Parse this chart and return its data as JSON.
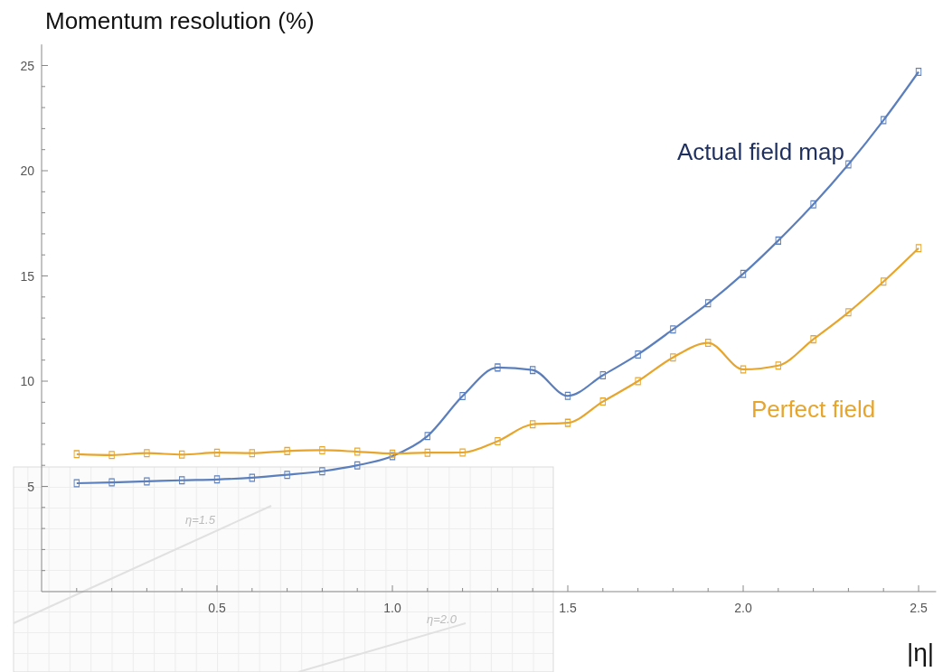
{
  "chart_data": {
    "type": "line",
    "ylabel": "Momentum resolution (%)",
    "xlabel": "|η|",
    "x": [
      0.1,
      0.2,
      0.3,
      0.4,
      0.5,
      0.6,
      0.7,
      0.8,
      0.9,
      1.0,
      1.1,
      1.2,
      1.3,
      1.4,
      1.5,
      1.6,
      1.7,
      1.8,
      1.9,
      2.0,
      2.1,
      2.2,
      2.3,
      2.4,
      2.5
    ],
    "series": [
      {
        "name": "Actual field map",
        "color": "#5b7fbd",
        "values": [
          5.15,
          5.19,
          5.24,
          5.29,
          5.33,
          5.41,
          5.55,
          5.72,
          6.0,
          6.44,
          7.39,
          9.29,
          10.65,
          10.53,
          9.3,
          10.28,
          11.27,
          12.46,
          13.7,
          15.1,
          16.68,
          18.4,
          20.3,
          22.4,
          24.7
        ]
      },
      {
        "name": "Perfect field",
        "color": "#e6a52c",
        "values": [
          6.53,
          6.49,
          6.58,
          6.51,
          6.6,
          6.58,
          6.68,
          6.72,
          6.65,
          6.56,
          6.6,
          6.61,
          7.15,
          7.95,
          8.02,
          9.03,
          10.0,
          11.13,
          11.82,
          10.56,
          10.74,
          11.99,
          13.27,
          14.73,
          16.32
        ]
      }
    ],
    "xlim": [
      0,
      2.55
    ],
    "ylim": [
      0,
      26
    ],
    "xticks": [
      {
        "value": 0.1,
        "label": null
      },
      {
        "value": 0.2,
        "label": null
      },
      {
        "value": 0.3,
        "label": null
      },
      {
        "value": 0.4,
        "label": null
      },
      0.5,
      {
        "value": 0.6,
        "label": null
      },
      {
        "value": 0.7,
        "label": null
      },
      {
        "value": 0.8,
        "label": null
      },
      {
        "value": 0.9,
        "label": null
      },
      {
        "value": 1,
        "label": "1.0"
      },
      {
        "value": 1.1,
        "label": null
      },
      {
        "value": 1.2,
        "label": null
      },
      {
        "value": 1.3,
        "label": null
      },
      {
        "value": 1.4,
        "label": null
      },
      1.5,
      {
        "value": 1.6,
        "label": null
      },
      {
        "value": 1.7,
        "label": null
      },
      {
        "value": 1.8,
        "label": null
      },
      {
        "value": 1.9,
        "label": null
      },
      {
        "value": 2,
        "label": "2.0"
      },
      {
        "value": 2.1,
        "label": null
      },
      {
        "value": 2.2,
        "label": null
      },
      {
        "value": 2.3,
        "label": null
      },
      {
        "value": 2.4,
        "label": null
      },
      2.5
    ],
    "yticks": [
      {
        "value": 1,
        "label": null
      },
      {
        "value": 2,
        "label": null
      },
      {
        "value": 3,
        "label": null
      },
      {
        "value": 4,
        "label": null
      },
      5,
      {
        "value": 6,
        "label": null
      },
      {
        "value": 7,
        "label": null
      },
      {
        "value": 8,
        "label": null
      },
      {
        "value": 9,
        "label": null
      },
      10,
      {
        "value": 11,
        "label": null
      },
      {
        "value": 12,
        "label": null
      },
      {
        "value": 13,
        "label": null
      },
      {
        "value": 14,
        "label": null
      },
      15,
      {
        "value": 16,
        "label": null
      },
      {
        "value": 17,
        "label": null
      },
      {
        "value": 18,
        "label": null
      },
      {
        "value": 19,
        "label": null
      },
      20,
      {
        "value": 21,
        "label": null
      },
      {
        "value": 22,
        "label": null
      },
      {
        "value": 23,
        "label": null
      },
      {
        "value": 24,
        "label": null
      },
      25
    ],
    "annotations": [
      "η=1.5",
      "η=2.0"
    ],
    "marker": "square",
    "grid": false
  }
}
